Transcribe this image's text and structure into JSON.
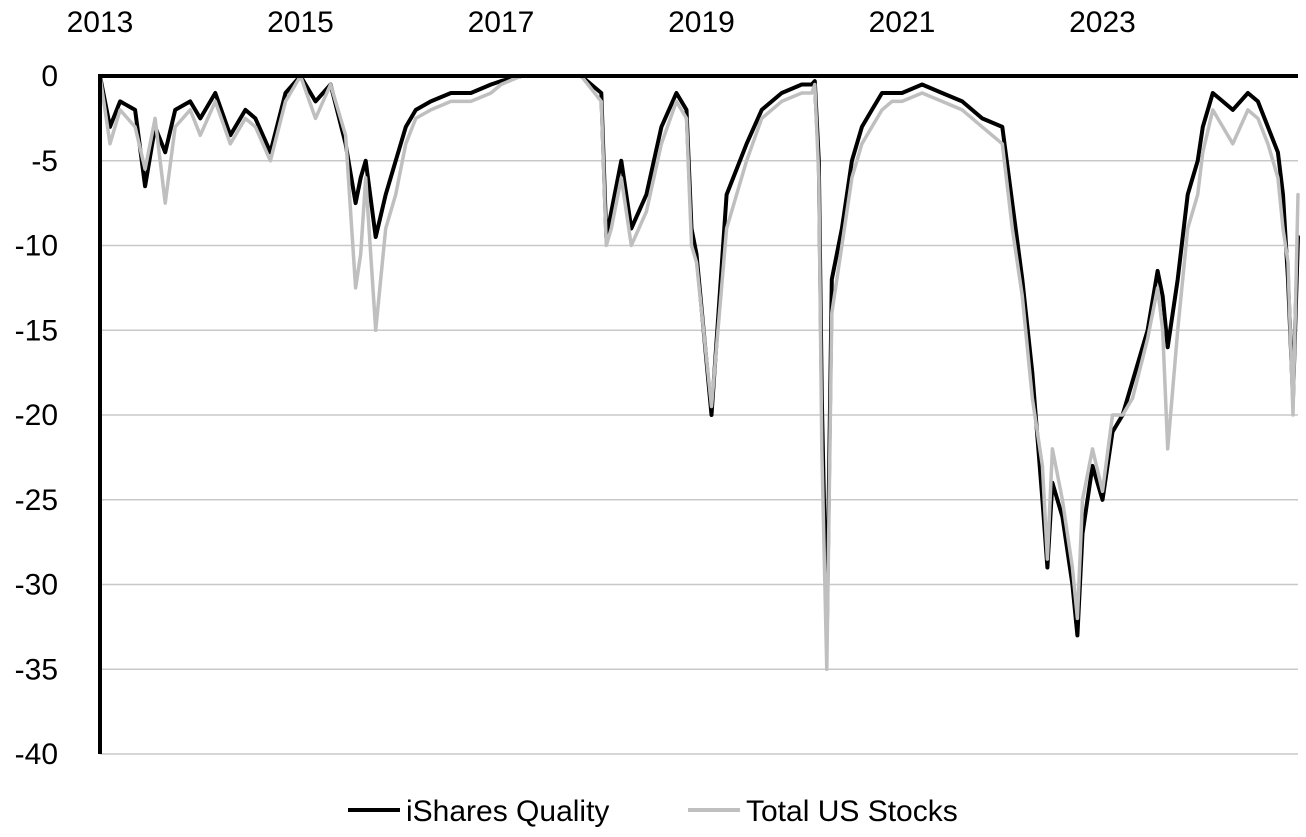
{
  "chart_data": {
    "type": "line",
    "title": "",
    "xlabel": "",
    "ylabel": "",
    "xlim": [
      2013.0,
      2024.95
    ],
    "ylim": [
      -40,
      0
    ],
    "x_ticks": [
      2013,
      2015,
      2017,
      2019,
      2021,
      2023
    ],
    "x_tick_labels": [
      "2013",
      "2015",
      "2017",
      "2019",
      "2021",
      "2023"
    ],
    "y_ticks": [
      0,
      -5,
      -10,
      -15,
      -20,
      -25,
      -30,
      -35,
      -40
    ],
    "y_tick_labels": [
      "0",
      "-5",
      "-10",
      "-15",
      "-20",
      "-25",
      "-30",
      "-35",
      "-40"
    ],
    "x_axis_position": "top",
    "grid": true,
    "legend": "bottom-center",
    "series": [
      {
        "name": "iShares Quality",
        "color": "#000000",
        "x": [
          2013.0,
          2013.1,
          2013.2,
          2013.35,
          2013.45,
          2013.55,
          2013.65,
          2013.75,
          2013.9,
          2014.0,
          2014.15,
          2014.3,
          2014.45,
          2014.55,
          2014.7,
          2014.85,
          2015.0,
          2015.15,
          2015.3,
          2015.45,
          2015.55,
          2015.6,
          2015.65,
          2015.75,
          2015.85,
          2015.95,
          2016.05,
          2016.15,
          2016.3,
          2016.5,
          2016.7,
          2016.9,
          2017.0,
          2017.2,
          2017.4,
          2017.6,
          2017.8,
          2018.0,
          2018.05,
          2018.1,
          2018.2,
          2018.3,
          2018.45,
          2018.6,
          2018.75,
          2018.85,
          2018.9,
          2018.95,
          2019.1,
          2019.25,
          2019.45,
          2019.6,
          2019.8,
          2020.0,
          2020.1,
          2020.13,
          2020.17,
          2020.2,
          2020.25,
          2020.3,
          2020.4,
          2020.5,
          2020.6,
          2020.7,
          2020.8,
          2020.9,
          2021.0,
          2021.2,
          2021.4,
          2021.6,
          2021.8,
          2022.0,
          2022.1,
          2022.2,
          2022.3,
          2022.4,
          2022.45,
          2022.5,
          2022.6,
          2022.7,
          2022.75,
          2022.8,
          2022.9,
          2023.0,
          2023.1,
          2023.2,
          2023.3,
          2023.45,
          2023.55,
          2023.6,
          2023.65,
          2023.75,
          2023.85,
          2023.95,
          2024.0,
          2024.1,
          2024.2,
          2024.3,
          2024.45,
          2024.55,
          2024.65,
          2024.75,
          2024.8,
          2024.85,
          2024.9,
          2024.95
        ],
        "values": [
          0,
          -3,
          -1.5,
          -2,
          -6.5,
          -3,
          -4.5,
          -2,
          -1.5,
          -2.5,
          -1,
          -3.5,
          -2,
          -2.5,
          -4.5,
          -1,
          0,
          -1.5,
          -0.5,
          -4,
          -7.5,
          -6,
          -5,
          -9.5,
          -7,
          -5,
          -3,
          -2,
          -1.5,
          -1,
          -1,
          -0.5,
          -0.3,
          0,
          0,
          0,
          0,
          -1,
          -9.5,
          -8,
          -5,
          -9,
          -7,
          -3,
          -1,
          -2,
          -9,
          -10.5,
          -20,
          -7,
          -4,
          -2,
          -1,
          -0.5,
          -0.5,
          -0.3,
          -5,
          -19,
          -33,
          -12,
          -9,
          -5,
          -3,
          -2,
          -1,
          -1,
          -1,
          -0.5,
          -1,
          -1.5,
          -2.5,
          -3,
          -7.5,
          -12,
          -17.5,
          -25,
          -29,
          -24,
          -26,
          -30,
          -33,
          -27,
          -23,
          -25,
          -21,
          -20,
          -18,
          -15,
          -11.5,
          -13,
          -16,
          -12,
          -7,
          -5,
          -3,
          -1,
          -1.5,
          -2,
          -1,
          -1.5,
          -3,
          -4.5,
          -7,
          -12,
          -19,
          -9.5
        ]
      },
      {
        "name": "Total US Stocks",
        "color": "#bfbfbf",
        "x": [
          2013.0,
          2013.1,
          2013.2,
          2013.35,
          2013.45,
          2013.55,
          2013.65,
          2013.75,
          2013.9,
          2014.0,
          2014.15,
          2014.3,
          2014.45,
          2014.55,
          2014.7,
          2014.85,
          2015.0,
          2015.15,
          2015.3,
          2015.45,
          2015.55,
          2015.6,
          2015.65,
          2015.75,
          2015.85,
          2015.95,
          2016.05,
          2016.15,
          2016.3,
          2016.5,
          2016.7,
          2016.9,
          2017.0,
          2017.2,
          2017.4,
          2017.6,
          2017.8,
          2018.0,
          2018.05,
          2018.1,
          2018.2,
          2018.3,
          2018.45,
          2018.6,
          2018.75,
          2018.85,
          2018.9,
          2018.95,
          2019.1,
          2019.25,
          2019.45,
          2019.6,
          2019.8,
          2020.0,
          2020.1,
          2020.13,
          2020.17,
          2020.2,
          2020.25,
          2020.3,
          2020.4,
          2020.5,
          2020.6,
          2020.7,
          2020.8,
          2020.9,
          2021.0,
          2021.2,
          2021.4,
          2021.6,
          2021.8,
          2022.0,
          2022.1,
          2022.2,
          2022.3,
          2022.4,
          2022.45,
          2022.5,
          2022.6,
          2022.7,
          2022.75,
          2022.8,
          2022.9,
          2023.0,
          2023.1,
          2023.2,
          2023.3,
          2023.45,
          2023.55,
          2023.6,
          2023.65,
          2023.75,
          2023.85,
          2023.95,
          2024.0,
          2024.1,
          2024.2,
          2024.3,
          2024.45,
          2024.55,
          2024.65,
          2024.75,
          2024.8,
          2024.85,
          2024.9,
          2024.95
        ],
        "values": [
          0,
          -4,
          -2,
          -3,
          -5.5,
          -2.5,
          -7.5,
          -3,
          -2,
          -3.5,
          -1.5,
          -4,
          -2.5,
          -3,
          -5,
          -1.5,
          0,
          -2.5,
          -0.5,
          -3.5,
          -12.5,
          -10.5,
          -6,
          -15,
          -9,
          -7,
          -4,
          -2.5,
          -2,
          -1.5,
          -1.5,
          -1,
          -0.5,
          0,
          0,
          0,
          0,
          -1.5,
          -10,
          -9,
          -6,
          -10,
          -8,
          -4,
          -1.5,
          -2.5,
          -10,
          -11,
          -19.5,
          -9,
          -5,
          -2.5,
          -1.5,
          -1,
          -1,
          -0.5,
          -6,
          -22,
          -35,
          -14,
          -10,
          -6,
          -4,
          -3,
          -2,
          -1.5,
          -1.5,
          -1,
          -1.5,
          -2,
          -3,
          -4,
          -9,
          -13,
          -19,
          -23,
          -28.5,
          -22,
          -25,
          -29,
          -32,
          -25,
          -22,
          -24.5,
          -20,
          -20,
          -19,
          -15.5,
          -12.5,
          -15,
          -22,
          -15,
          -9,
          -7,
          -4.5,
          -2,
          -3,
          -4,
          -2,
          -2.5,
          -4,
          -6,
          -9,
          -11,
          -20,
          -7
        ]
      }
    ]
  }
}
